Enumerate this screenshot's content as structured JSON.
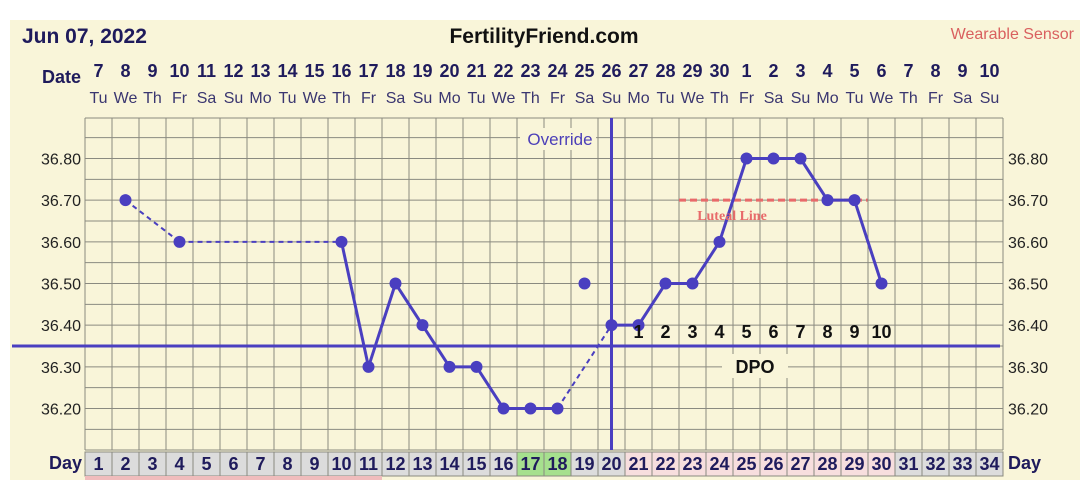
{
  "header": {
    "date": "Jun 07, 2022",
    "site": "FertilityFriend.com",
    "sensor": "Wearable Sensor"
  },
  "labels": {
    "date_row": "Date",
    "day_row": "Day",
    "override": "Override",
    "dpo": "DPO",
    "luteal": "Luteal Line"
  },
  "colors": {
    "background": "#f9f5d9",
    "line": "#4a3fc0",
    "grid": "#8a8a80",
    "luteal": "#e86a6a",
    "green_cell": "#a6e08e",
    "pink_cell": "#f7dede",
    "grey_cell": "#dcdcdc"
  },
  "chart_data": {
    "type": "line",
    "days": [
      1,
      2,
      3,
      4,
      5,
      6,
      7,
      8,
      9,
      10,
      11,
      12,
      13,
      14,
      15,
      16,
      17,
      18,
      19,
      20,
      21,
      22,
      23,
      24,
      25,
      26,
      27,
      28,
      29,
      30,
      31,
      32,
      33,
      34
    ],
    "dates": [
      "7",
      "8",
      "9",
      "10",
      "11",
      "12",
      "13",
      "14",
      "15",
      "16",
      "17",
      "18",
      "19",
      "20",
      "21",
      "22",
      "23",
      "24",
      "25",
      "26",
      "27",
      "28",
      "29",
      "30",
      "1",
      "2",
      "3",
      "4",
      "5",
      "6",
      "7",
      "8",
      "9",
      "10"
    ],
    "weekdays": [
      "Tu",
      "We",
      "Th",
      "Fr",
      "Sa",
      "Su",
      "Mo",
      "Tu",
      "We",
      "Th",
      "Fr",
      "Sa",
      "Su",
      "Mo",
      "Tu",
      "We",
      "Th",
      "Fr",
      "Sa",
      "Su",
      "Mo",
      "Tu",
      "We",
      "Th",
      "Fr",
      "Sa",
      "Su",
      "Mo",
      "Tu",
      "We",
      "Th",
      "Fr",
      "Sa",
      "Su"
    ],
    "ylim": [
      36.15,
      36.85
    ],
    "yticks": [
      "36.80",
      "36.70",
      "36.60",
      "36.50",
      "36.40",
      "36.30",
      "36.20"
    ],
    "temperatures": [
      {
        "day": 2,
        "temp": 36.7
      },
      {
        "day": 4,
        "temp": 36.6
      },
      {
        "day": 10,
        "temp": 36.6
      },
      {
        "day": 11,
        "temp": 36.3
      },
      {
        "day": 12,
        "temp": 36.5
      },
      {
        "day": 13,
        "temp": 36.4
      },
      {
        "day": 14,
        "temp": 36.3
      },
      {
        "day": 15,
        "temp": 36.3
      },
      {
        "day": 16,
        "temp": 36.2
      },
      {
        "day": 17,
        "temp": 36.2
      },
      {
        "day": 18,
        "temp": 36.2
      },
      {
        "day": 20,
        "temp": 36.4
      },
      {
        "day": 21,
        "temp": 36.4
      },
      {
        "day": 22,
        "temp": 36.5
      },
      {
        "day": 23,
        "temp": 36.5
      },
      {
        "day": 24,
        "temp": 36.6
      },
      {
        "day": 25,
        "temp": 36.8
      },
      {
        "day": 26,
        "temp": 36.8
      },
      {
        "day": 27,
        "temp": 36.8
      },
      {
        "day": 28,
        "temp": 36.7
      },
      {
        "day": 29,
        "temp": 36.7
      },
      {
        "day": 30,
        "temp": 36.5
      }
    ],
    "segments_dashed": [
      [
        2,
        4
      ],
      [
        4,
        10
      ],
      [
        18,
        20
      ]
    ],
    "segments_solid": [
      [
        10,
        11
      ],
      [
        11,
        12
      ],
      [
        12,
        13
      ],
      [
        13,
        14
      ],
      [
        14,
        15
      ],
      [
        15,
        16
      ],
      [
        16,
        17
      ],
      [
        17,
        18
      ],
      [
        20,
        21
      ],
      [
        21,
        22
      ],
      [
        22,
        23
      ],
      [
        23,
        24
      ],
      [
        24,
        25
      ],
      [
        25,
        26
      ],
      [
        26,
        27
      ],
      [
        27,
        28
      ],
      [
        28,
        29
      ],
      [
        29,
        30
      ]
    ],
    "extra_points": [
      {
        "day": 19,
        "temp": 36.5
      }
    ],
    "coverline": 36.35,
    "ovulation_day": 20,
    "luteal_line": {
      "temp": 36.7,
      "from_day": 23,
      "to_day": 29
    },
    "dpo": [
      {
        "day": 21,
        "label": "1"
      },
      {
        "day": 22,
        "label": "2"
      },
      {
        "day": 23,
        "label": "3"
      },
      {
        "day": 24,
        "label": "4"
      },
      {
        "day": 25,
        "label": "5"
      },
      {
        "day": 26,
        "label": "6"
      },
      {
        "day": 27,
        "label": "7"
      },
      {
        "day": 28,
        "label": "8"
      },
      {
        "day": 29,
        "label": "9"
      },
      {
        "day": 30,
        "label": "10"
      }
    ],
    "green_days": [
      17,
      18
    ],
    "pink_days": [
      21,
      22,
      23,
      24,
      25,
      26,
      27,
      28,
      29,
      30
    ]
  }
}
